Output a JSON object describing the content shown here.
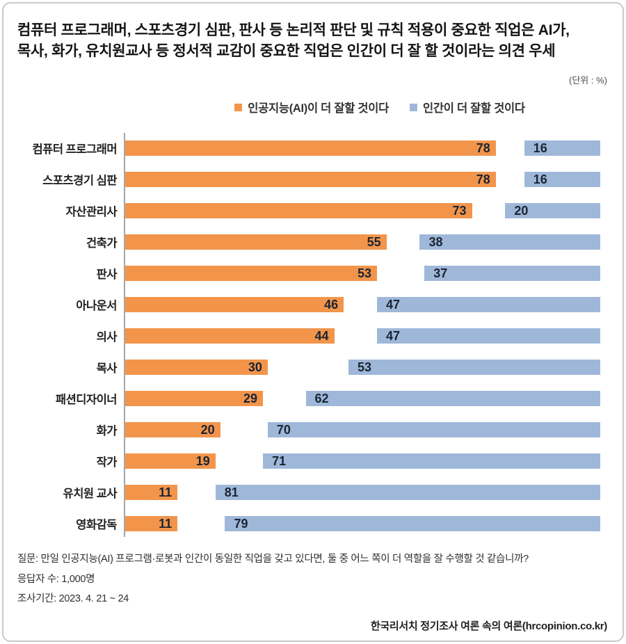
{
  "card": {
    "title_line1": "컴퓨터 프로그래머, 스포츠경기 심판, 판사 등 논리적 판단 및 규칙 적용이 중요한 직업은 AI가,",
    "title_line2": "목사, 화가, 유치원교사 등 정서적 교감이 중요한 직업은 인간이 더 잘 할 것이라는 의견 우세",
    "unit_label": "(단위 : %)"
  },
  "legend": [
    {
      "label": "인공지능(AI)이 더 잘할 것이다",
      "color": "#F2954B"
    },
    {
      "label": "인간이 더 잘할 것이다",
      "color": "#9FB8D9"
    }
  ],
  "chart_data": {
    "type": "bar",
    "orientation": "horizontal",
    "unit": "%",
    "xlim": [
      0,
      100
    ],
    "grid": false,
    "legend_position": "top",
    "note": "AI bars anchored to left axis (0), human bars anchored to right edge (100); middle gap = no answer",
    "categories": [
      "컴퓨터 프로그래머",
      "스포츠경기 심판",
      "자산관리사",
      "건축가",
      "판사",
      "아나운서",
      "의사",
      "목사",
      "패션디자이너",
      "화가",
      "작가",
      "유치원 교사",
      "영화감독"
    ],
    "series": [
      {
        "name": "인공지능(AI)이 더 잘할 것이다",
        "color": "#F2954B",
        "anchor": "left",
        "values": [
          78,
          78,
          73,
          55,
          53,
          46,
          44,
          30,
          29,
          20,
          19,
          11,
          11
        ]
      },
      {
        "name": "인간이 더 잘할 것이다",
        "color": "#9FB8D9",
        "anchor": "right",
        "values": [
          16,
          16,
          20,
          38,
          37,
          47,
          47,
          53,
          62,
          70,
          71,
          81,
          79
        ]
      }
    ],
    "value_label_color": "#1B2433",
    "axis_color": "#A6A6A6"
  },
  "footer": {
    "question": "질문:  만일 인공지능(AI) 프로그램·로봇과 인간이 동일한 직업을 갖고 있다면, 둘 중 어느 쪽이 더 역할을 잘 수행할 것 같습니까?",
    "respondents": "응답자 수: 1,000명",
    "period": "조사기간: 2023. 4. 21 ~ 24",
    "source": "한국리서치 정기조사 여론 속의 여론(hrcopinion.co.kr)"
  }
}
